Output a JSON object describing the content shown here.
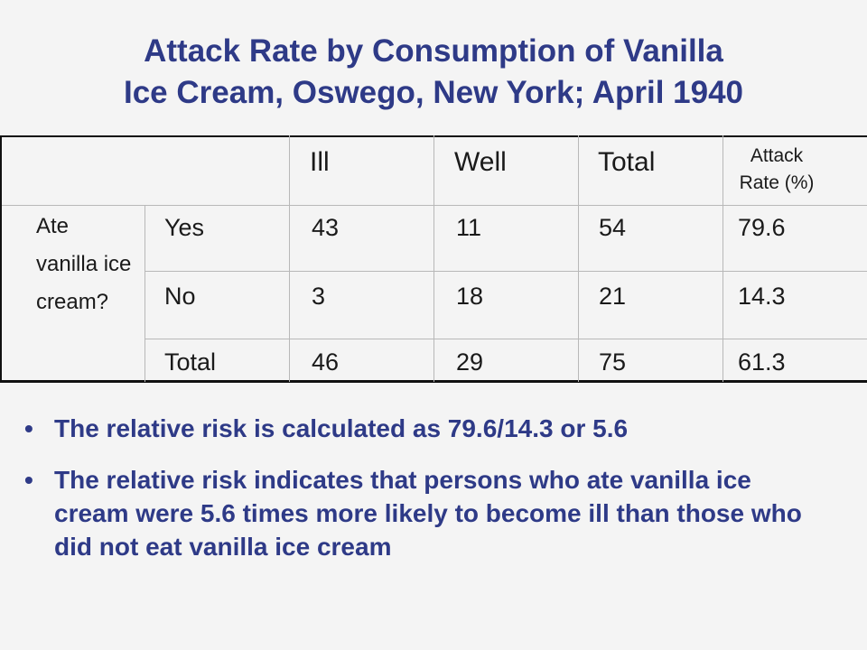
{
  "title": {
    "line1": "Attack Rate by Consumption of Vanilla",
    "line2": "Ice Cream, Oswego, New York; April 1940"
  },
  "table": {
    "headers": {
      "ill": "Ill",
      "well": "Well",
      "total": "Total",
      "attack_rate_line1": "Attack",
      "attack_rate_line2": "Rate (%)"
    },
    "row_group_label": "Ate vanilla ice cream?",
    "rows": [
      {
        "label": "Yes",
        "ill": "43",
        "well": "11",
        "total": "54",
        "attack_rate": "79.6"
      },
      {
        "label": "No",
        "ill": "3",
        "well": "18",
        "total": "21",
        "attack_rate": "14.3"
      },
      {
        "label": "Total",
        "ill": "46",
        "well": "29",
        "total": "75",
        "attack_rate": "61.3"
      }
    ]
  },
  "bullets": [
    "The relative risk is calculated as 79.6/14.3 or 5.6",
    "The relative risk indicates that persons who ate vanilla ice cream were 5.6 times more likely to become ill than those who did not eat vanilla ice cream"
  ],
  "bullet_symbol": "•"
}
